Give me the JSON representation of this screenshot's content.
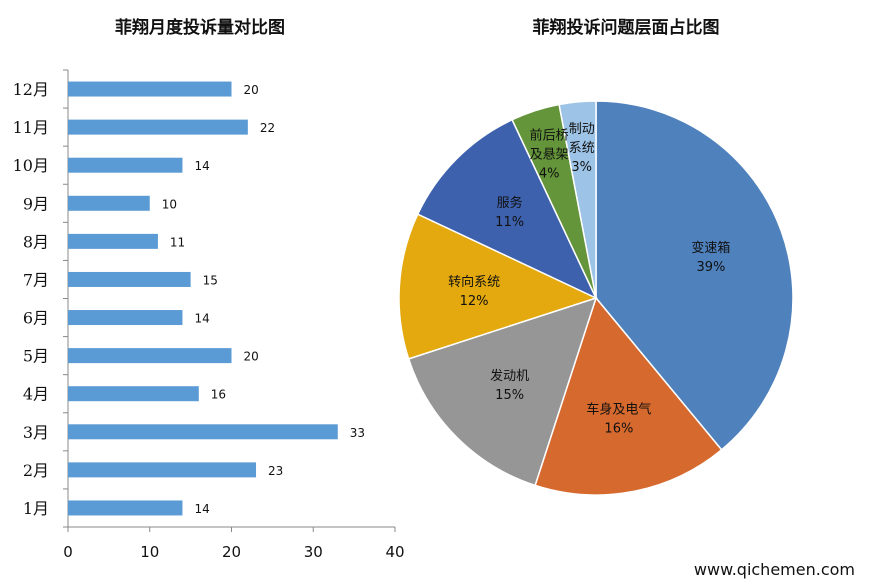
{
  "chart_data": [
    {
      "type": "bar",
      "orientation": "horizontal",
      "title": "菲翔月度投诉量对比图",
      "categories": [
        "1月",
        "2月",
        "3月",
        "4月",
        "5月",
        "6月",
        "7月",
        "8月",
        "9月",
        "10月",
        "11月",
        "12月"
      ],
      "values": [
        14,
        23,
        33,
        16,
        20,
        14,
        15,
        11,
        10,
        14,
        22,
        20
      ],
      "xlim": [
        0,
        40
      ],
      "xticks": [
        "0",
        "10",
        "20",
        "30",
        "40"
      ],
      "color": "#5b9bd5",
      "grid": false,
      "data_labels": true
    },
    {
      "type": "pie",
      "title": "菲翔投诉问题层面占比图",
      "slices": [
        {
          "label": [
            "变速箱"
          ],
          "pct": "39%",
          "value": 39,
          "color": "#4f81bd"
        },
        {
          "label": [
            "车身及电气"
          ],
          "pct": "16%",
          "value": 16,
          "color": "#d6692e"
        },
        {
          "label": [
            "发动机"
          ],
          "pct": "15%",
          "value": 15,
          "color": "#969696"
        },
        {
          "label": [
            "转向系统"
          ],
          "pct": "12%",
          "value": 12,
          "color": "#e3a90f"
        },
        {
          "label": [
            "服务"
          ],
          "pct": "11%",
          "value": 11,
          "color": "#3e61ae"
        },
        {
          "label": [
            "前后桥",
            "及悬架"
          ],
          "pct": "4%",
          "value": 4,
          "color": "#64953a"
        },
        {
          "label": [
            "制动",
            "系统"
          ],
          "pct": "3%",
          "value": 3,
          "color": "#9dc3e6"
        }
      ],
      "start": "12 o'clock",
      "direction": "clockwise"
    }
  ],
  "watermark": "www.qichemen.com"
}
